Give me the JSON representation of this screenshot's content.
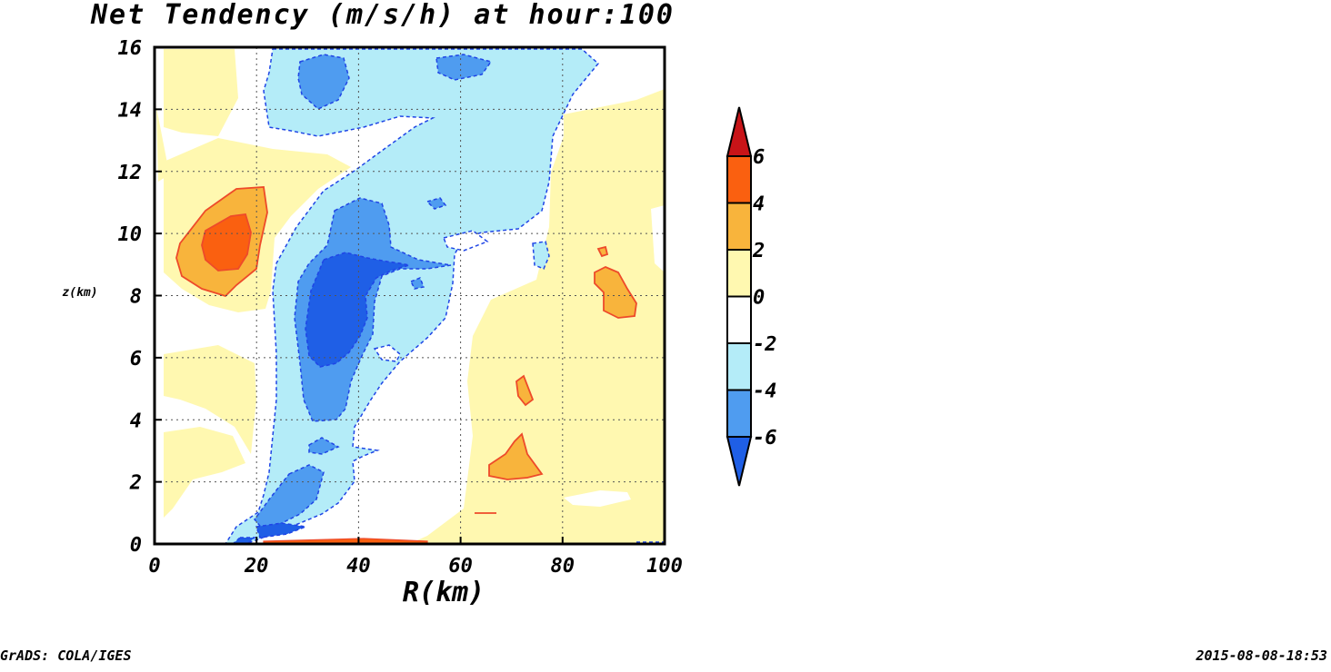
{
  "chart_data": {
    "type": "contour",
    "title": "Net Tendency (m/s/h) at hour:100",
    "xlabel": "R(km)",
    "ylabel": "z(km)",
    "xlim": [
      0,
      100
    ],
    "ylim": [
      0,
      16
    ],
    "x_ticks": [
      "0",
      "20",
      "40",
      "60",
      "80",
      "100"
    ],
    "y_ticks": [
      "0",
      "2",
      "4",
      "6",
      "8",
      "10",
      "12",
      "14",
      "16"
    ],
    "grid": "dotted",
    "colorbar": {
      "levels": [
        "-6",
        "-4",
        "-2",
        "0",
        "2",
        "4",
        "6"
      ],
      "colors": [
        "#1f5fe6",
        "#4f9cf0",
        "#b4ecf8",
        "#ffffff",
        "#fff8b0",
        "#f8b43c",
        "#fa6010",
        "#c81418"
      ]
    }
  },
  "footer": {
    "left": "GrADS: COLA/IGES",
    "right": "2015-08-08-18:53"
  }
}
